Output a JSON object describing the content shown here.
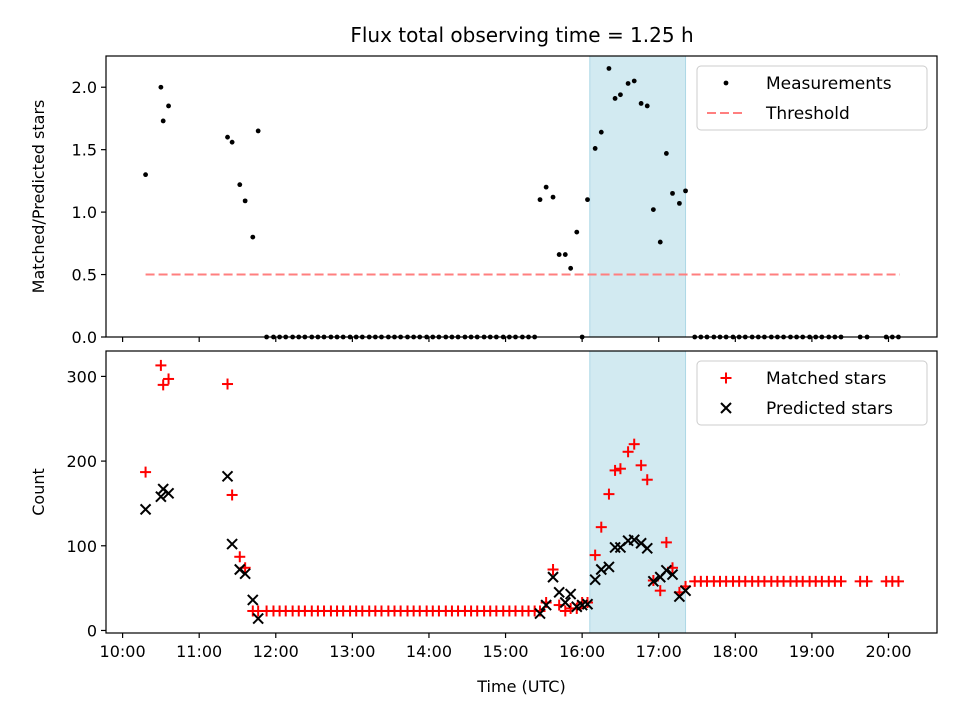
{
  "title": "Flux total observing time = 1.25 h",
  "colors": {
    "measurement": "#000000",
    "threshold": "#ff7f7f",
    "matched": "#ff0000",
    "predicted": "#000000",
    "span": "#add8e6"
  },
  "chart_data": [
    {
      "type": "scatter",
      "ylabel": "Matched/Predicted stars",
      "xlim": [
        9.7833,
        20.6333
      ],
      "ylim": [
        0,
        2.25
      ],
      "yticks": [
        0,
        0.5,
        1.0,
        1.5,
        2.0
      ],
      "ytick_labels": [
        "0.0",
        "0.5",
        "1.0",
        "1.5",
        "2.0"
      ],
      "highlight_span": [
        16.1,
        17.35
      ],
      "legend": {
        "placement": "top-right",
        "entries": [
          "Measurements",
          "Threshold"
        ]
      },
      "threshold": {
        "name": "Threshold",
        "y": 0.5,
        "x": [
          10.3,
          20.15
        ]
      },
      "series": [
        {
          "name": "Measurements",
          "points": [
            [
              10.3,
              1.3
            ],
            [
              10.5,
              2.0
            ],
            [
              10.53,
              1.73
            ],
            [
              10.6,
              1.85
            ],
            [
              11.37,
              1.6
            ],
            [
              11.43,
              1.56
            ],
            [
              11.53,
              1.22
            ],
            [
              11.6,
              1.09
            ],
            [
              11.7,
              0.8
            ],
            [
              11.77,
              1.65
            ],
            [
              11.88,
              0
            ],
            [
              11.97,
              0
            ],
            [
              12.05,
              0
            ],
            [
              12.13,
              0
            ],
            [
              12.22,
              0
            ],
            [
              12.3,
              0
            ],
            [
              12.38,
              0
            ],
            [
              12.47,
              0
            ],
            [
              12.55,
              0
            ],
            [
              12.63,
              0
            ],
            [
              12.72,
              0
            ],
            [
              12.8,
              0
            ],
            [
              12.88,
              0
            ],
            [
              12.97,
              0
            ],
            [
              13.05,
              0
            ],
            [
              13.13,
              0
            ],
            [
              13.22,
              0
            ],
            [
              13.3,
              0
            ],
            [
              13.38,
              0
            ],
            [
              13.47,
              0
            ],
            [
              13.55,
              0
            ],
            [
              13.63,
              0
            ],
            [
              13.72,
              0
            ],
            [
              13.8,
              0
            ],
            [
              13.88,
              0
            ],
            [
              13.97,
              0
            ],
            [
              14.05,
              0
            ],
            [
              14.13,
              0
            ],
            [
              14.22,
              0
            ],
            [
              14.3,
              0
            ],
            [
              14.38,
              0
            ],
            [
              14.47,
              0
            ],
            [
              14.55,
              0
            ],
            [
              14.63,
              0
            ],
            [
              14.72,
              0
            ],
            [
              14.8,
              0
            ],
            [
              14.88,
              0
            ],
            [
              14.97,
              0
            ],
            [
              15.05,
              0
            ],
            [
              15.13,
              0
            ],
            [
              15.22,
              0
            ],
            [
              15.3,
              0
            ],
            [
              15.38,
              0
            ],
            [
              15.45,
              1.1
            ],
            [
              15.53,
              1.2
            ],
            [
              15.62,
              1.12
            ],
            [
              15.7,
              0.66
            ],
            [
              15.78,
              0.66
            ],
            [
              15.85,
              0.55
            ],
            [
              15.93,
              0.84
            ],
            [
              16.0,
              0
            ],
            [
              16.07,
              1.1
            ],
            [
              16.17,
              1.51
            ],
            [
              16.25,
              1.64
            ],
            [
              16.35,
              2.15
            ],
            [
              16.43,
              1.91
            ],
            [
              16.5,
              1.94
            ],
            [
              16.6,
              2.03
            ],
            [
              16.68,
              2.05
            ],
            [
              16.77,
              1.87
            ],
            [
              16.85,
              1.85
            ],
            [
              16.93,
              1.02
            ],
            [
              17.02,
              0.76
            ],
            [
              17.1,
              1.47
            ],
            [
              17.18,
              1.15
            ],
            [
              17.27,
              1.07
            ],
            [
              17.35,
              1.17
            ],
            [
              17.47,
              0
            ],
            [
              17.55,
              0
            ],
            [
              17.63,
              0
            ],
            [
              17.72,
              0
            ],
            [
              17.8,
              0
            ],
            [
              17.88,
              0
            ],
            [
              17.97,
              0
            ],
            [
              18.05,
              0
            ],
            [
              18.13,
              0
            ],
            [
              18.22,
              0
            ],
            [
              18.3,
              0
            ],
            [
              18.38,
              0
            ],
            [
              18.47,
              0
            ],
            [
              18.55,
              0
            ],
            [
              18.63,
              0
            ],
            [
              18.72,
              0
            ],
            [
              18.8,
              0
            ],
            [
              18.88,
              0
            ],
            [
              18.97,
              0
            ],
            [
              19.05,
              0
            ],
            [
              19.13,
              0
            ],
            [
              19.22,
              0
            ],
            [
              19.3,
              0
            ],
            [
              19.38,
              0
            ],
            [
              19.63,
              0
            ],
            [
              19.72,
              0
            ],
            [
              19.97,
              0
            ],
            [
              20.05,
              0
            ],
            [
              20.13,
              0
            ]
          ]
        }
      ]
    },
    {
      "type": "scatter",
      "xlabel": "Time (UTC)",
      "ylabel": "Count",
      "xlim": [
        9.7833,
        20.6333
      ],
      "ylim": [
        -3,
        330
      ],
      "yticks": [
        0,
        100,
        200,
        300
      ],
      "ytick_labels": [
        "0",
        "100",
        "200",
        "300"
      ],
      "xticks": [
        10,
        11,
        12,
        13,
        14,
        15,
        16,
        17,
        18,
        19,
        20
      ],
      "xtick_labels": [
        "10:00",
        "11:00",
        "12:00",
        "13:00",
        "14:00",
        "15:00",
        "16:00",
        "17:00",
        "18:00",
        "19:00",
        "20:00"
      ],
      "highlight_span": [
        16.1,
        17.35
      ],
      "legend": {
        "placement": "top-right",
        "entries": [
          "Matched stars",
          "Predicted stars"
        ]
      },
      "series": [
        {
          "name": "Matched stars",
          "marker": "+",
          "points": [
            [
              10.3,
              187
            ],
            [
              10.5,
              313
            ],
            [
              10.53,
              290
            ],
            [
              10.6,
              297
            ],
            [
              11.37,
              291
            ],
            [
              11.43,
              160
            ],
            [
              11.53,
              87
            ],
            [
              11.6,
              74
            ],
            [
              11.7,
              23
            ],
            [
              11.77,
              23
            ],
            [
              11.88,
              23
            ],
            [
              11.97,
              23
            ],
            [
              12.05,
              23
            ],
            [
              12.13,
              23
            ],
            [
              12.22,
              23
            ],
            [
              12.3,
              23
            ],
            [
              12.38,
              23
            ],
            [
              12.47,
              23
            ],
            [
              12.55,
              23
            ],
            [
              12.63,
              23
            ],
            [
              12.72,
              23
            ],
            [
              12.8,
              23
            ],
            [
              12.88,
              23
            ],
            [
              12.97,
              23
            ],
            [
              13.05,
              23
            ],
            [
              13.13,
              23
            ],
            [
              13.22,
              23
            ],
            [
              13.3,
              23
            ],
            [
              13.38,
              23
            ],
            [
              13.47,
              23
            ],
            [
              13.55,
              23
            ],
            [
              13.63,
              23
            ],
            [
              13.72,
              23
            ],
            [
              13.8,
              23
            ],
            [
              13.88,
              23
            ],
            [
              13.97,
              23
            ],
            [
              14.05,
              23
            ],
            [
              14.13,
              23
            ],
            [
              14.22,
              23
            ],
            [
              14.3,
              23
            ],
            [
              14.38,
              23
            ],
            [
              14.47,
              23
            ],
            [
              14.55,
              23
            ],
            [
              14.63,
              23
            ],
            [
              14.72,
              23
            ],
            [
              14.8,
              23
            ],
            [
              14.88,
              23
            ],
            [
              14.97,
              23
            ],
            [
              15.05,
              23
            ],
            [
              15.13,
              23
            ],
            [
              15.22,
              23
            ],
            [
              15.3,
              23
            ],
            [
              15.38,
              23
            ],
            [
              15.45,
              23
            ],
            [
              15.53,
              33
            ],
            [
              15.62,
              72
            ],
            [
              15.7,
              30
            ],
            [
              15.78,
              23
            ],
            [
              15.85,
              26
            ],
            [
              15.93,
              26
            ],
            [
              16.0,
              33
            ],
            [
              16.07,
              33
            ],
            [
              16.17,
              89
            ],
            [
              16.25,
              122
            ],
            [
              16.35,
              161
            ],
            [
              16.43,
              189
            ],
            [
              16.5,
              191
            ],
            [
              16.6,
              211
            ],
            [
              16.68,
              220
            ],
            [
              16.77,
              195
            ],
            [
              16.85,
              178
            ],
            [
              16.93,
              59
            ],
            [
              17.02,
              47
            ],
            [
              17.1,
              104
            ],
            [
              17.18,
              74
            ],
            [
              17.27,
              45
            ],
            [
              17.35,
              52
            ],
            [
              17.47,
              58
            ],
            [
              17.55,
              58
            ],
            [
              17.63,
              58
            ],
            [
              17.72,
              58
            ],
            [
              17.8,
              58
            ],
            [
              17.88,
              58
            ],
            [
              17.97,
              58
            ],
            [
              18.05,
              58
            ],
            [
              18.13,
              58
            ],
            [
              18.22,
              58
            ],
            [
              18.3,
              58
            ],
            [
              18.38,
              58
            ],
            [
              18.47,
              58
            ],
            [
              18.55,
              58
            ],
            [
              18.63,
              58
            ],
            [
              18.72,
              58
            ],
            [
              18.8,
              58
            ],
            [
              18.88,
              58
            ],
            [
              18.97,
              58
            ],
            [
              19.05,
              58
            ],
            [
              19.13,
              58
            ],
            [
              19.22,
              58
            ],
            [
              19.3,
              58
            ],
            [
              19.38,
              58
            ],
            [
              19.63,
              58
            ],
            [
              19.72,
              58
            ],
            [
              19.97,
              58
            ],
            [
              20.05,
              58
            ],
            [
              20.13,
              58
            ]
          ]
        },
        {
          "name": "Predicted stars",
          "marker": "x",
          "points": [
            [
              10.3,
              143
            ],
            [
              10.5,
              158
            ],
            [
              10.53,
              167
            ],
            [
              10.6,
              162
            ],
            [
              11.37,
              182
            ],
            [
              11.43,
              102
            ],
            [
              11.53,
              72
            ],
            [
              11.6,
              67
            ],
            [
              11.7,
              36
            ],
            [
              11.77,
              14
            ],
            [
              15.45,
              20
            ],
            [
              15.53,
              30
            ],
            [
              15.62,
              63
            ],
            [
              15.7,
              45
            ],
            [
              15.78,
              33
            ],
            [
              15.85,
              43
            ],
            [
              15.93,
              28
            ],
            [
              16.0,
              30
            ],
            [
              16.07,
              31
            ],
            [
              16.17,
              60
            ],
            [
              16.25,
              72
            ],
            [
              16.35,
              75
            ],
            [
              16.43,
              98
            ],
            [
              16.5,
              98
            ],
            [
              16.6,
              106
            ],
            [
              16.68,
              107
            ],
            [
              16.77,
              103
            ],
            [
              16.85,
              97
            ],
            [
              16.93,
              58
            ],
            [
              17.02,
              63
            ],
            [
              17.1,
              71
            ],
            [
              17.18,
              66
            ],
            [
              17.27,
              40
            ],
            [
              17.35,
              47
            ]
          ]
        }
      ]
    }
  ]
}
